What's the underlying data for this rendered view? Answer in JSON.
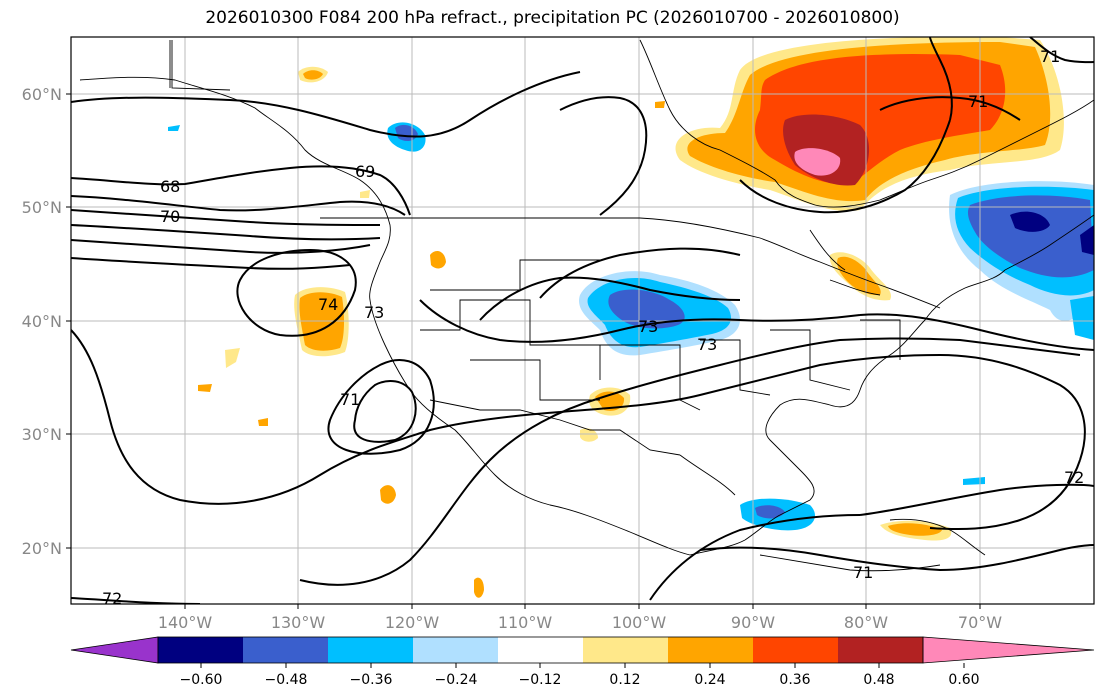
{
  "title": "2026010300 F084 200 hPa refract., precipitation PC (2026010700 - 2026010800)",
  "map": {
    "lat_ticks": [
      "60°N",
      "50°N",
      "40°N",
      "30°N",
      "20°N"
    ],
    "lon_ticks": [
      "140°W",
      "130°W",
      "120°W",
      "110°W",
      "100°W",
      "90°W",
      "80°W",
      "70°W"
    ],
    "contour_labels": [
      "68",
      "69",
      "70",
      "71",
      "71",
      "71",
      "71",
      "72",
      "72",
      "73",
      "73",
      "74"
    ]
  },
  "colorbar": {
    "labels": [
      "−0.60",
      "−0.48",
      "−0.36",
      "−0.24",
      "−0.12",
      "0.12",
      "0.24",
      "0.36",
      "0.48",
      "0.60"
    ],
    "colors": [
      "#9933cc",
      "#000080",
      "#3a5fcd",
      "#00bfff",
      "#b0e0ff",
      "#ffffff",
      "#ffe88a",
      "#ffa500",
      "#ff4500",
      "#b22222",
      "#ff88b8"
    ]
  }
}
